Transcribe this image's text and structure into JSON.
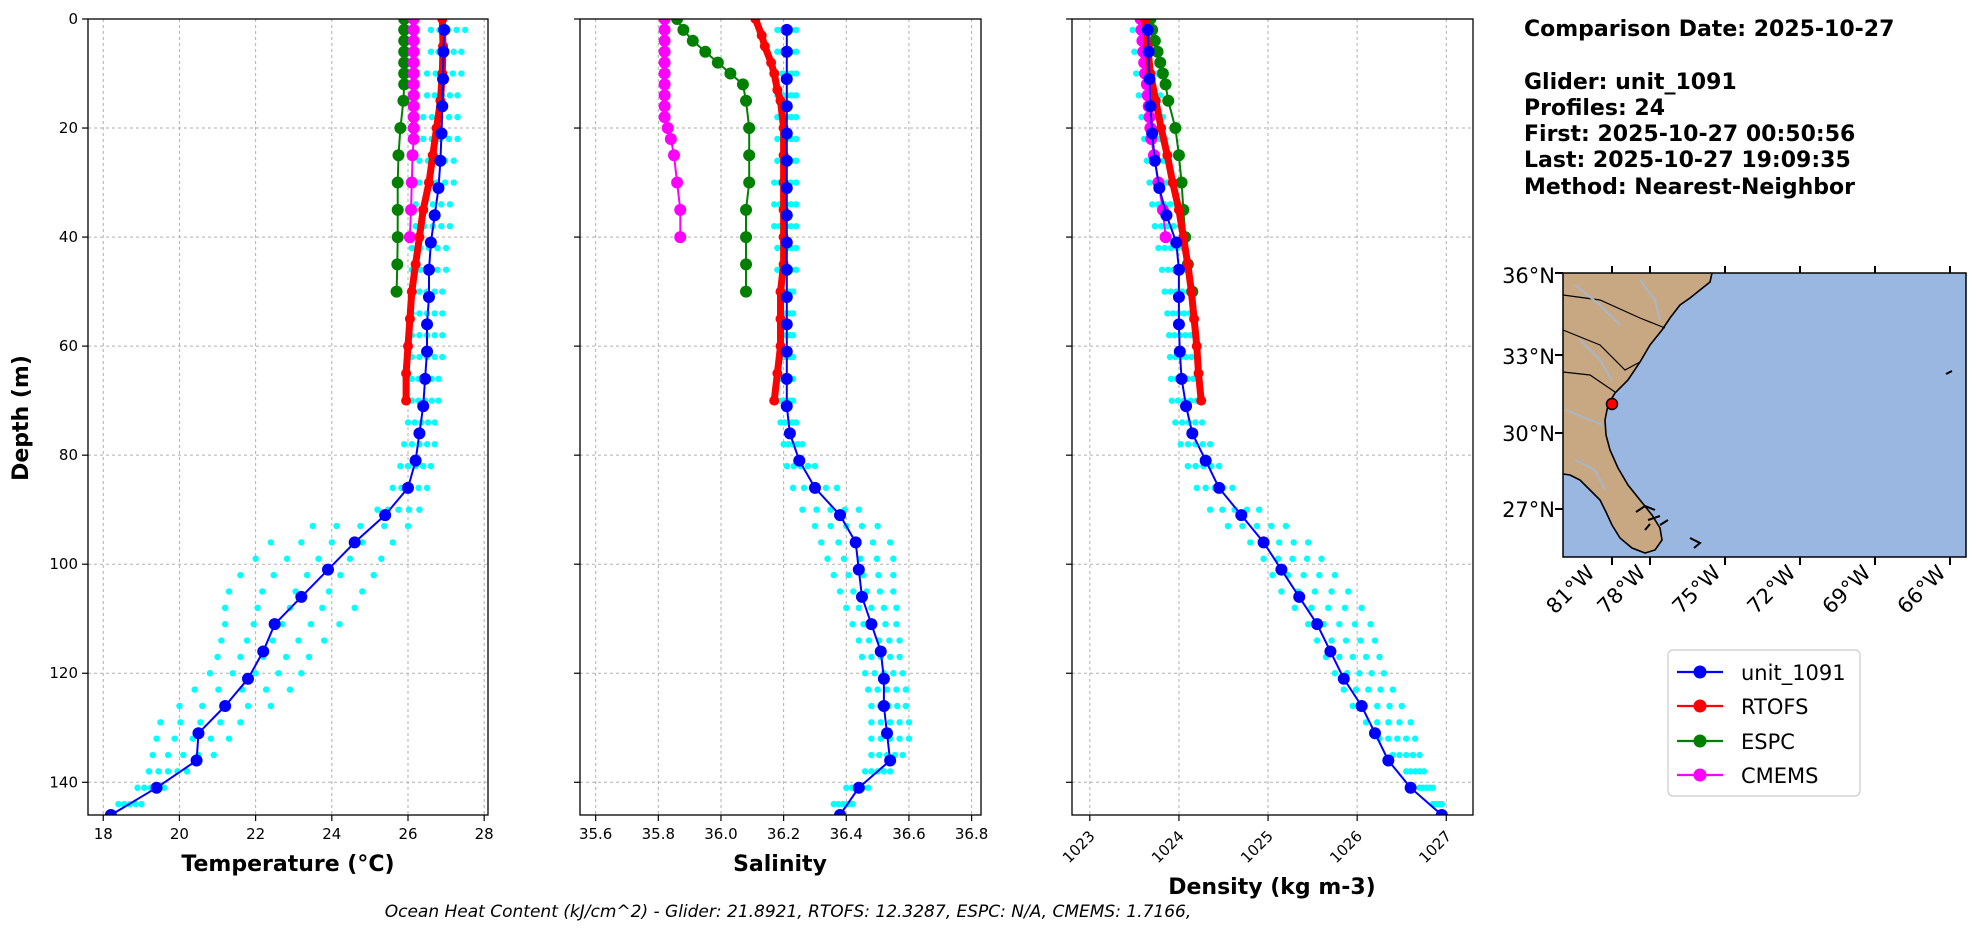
{
  "info": {
    "comparison_date": "Comparison Date: 2025-10-27",
    "glider": "Glider: unit_1091",
    "profiles": "Profiles: 24",
    "first": "First: 2025-10-27 00:50:56",
    "last": "Last: 2025-10-27 19:09:35",
    "method": "Method: Nearest-Neighbor"
  },
  "footer": "Ocean Heat Content (kJ/cm^2) - Glider: 21.8921,  RTOFS: 12.3287,  ESPC: N/A,  CMEMS: 1.7166,",
  "colors": {
    "glider": "#0000ff",
    "glider_raw": "#00ffff",
    "rtofs": "#ff0000",
    "espc": "#008000",
    "cmems": "#ff00ff",
    "ocean": "#9ab7e2",
    "land": "#c8a882"
  },
  "legend": [
    "unit_1091",
    "RTOFS",
    "ESPC",
    "CMEMS"
  ],
  "map": {
    "lat_labels": [
      "36°N",
      "33°N",
      "30°N",
      "27°N"
    ],
    "lon_labels": [
      "81°W",
      "78°W",
      "75°W",
      "72°W",
      "69°W",
      "66°W"
    ],
    "glider_position": {
      "lon": -80.1,
      "lat": 31.1
    }
  },
  "chart_data": [
    {
      "type": "line",
      "title": "",
      "xlabel": "Temperature (°C)",
      "ylabel": "Depth (m)",
      "xlim": [
        17.6,
        28.1
      ],
      "ylim": [
        146,
        0
      ],
      "xticks": [
        18,
        20,
        22,
        24,
        26,
        28
      ],
      "yticks": [
        0,
        20,
        40,
        60,
        80,
        100,
        120,
        140
      ],
      "grid": true,
      "series": [
        {
          "name": "unit_1091",
          "key": "glider",
          "depth": [
            2,
            6,
            11,
            16,
            21,
            26,
            31,
            36,
            41,
            46,
            51,
            56,
            61,
            66,
            71,
            76,
            81,
            86,
            91,
            96,
            101,
            106,
            111,
            116,
            121,
            126,
            131,
            136,
            141,
            146
          ],
          "values": [
            26.95,
            26.93,
            26.92,
            26.9,
            26.88,
            26.85,
            26.8,
            26.7,
            26.6,
            26.55,
            26.55,
            26.5,
            26.5,
            26.45,
            26.4,
            26.3,
            26.2,
            26.0,
            25.4,
            24.6,
            23.9,
            23.2,
            22.5,
            22.2,
            21.8,
            21.2,
            20.5,
            20.45,
            19.4,
            18.2
          ]
        },
        {
          "name": "RTOFS",
          "key": "rtofs",
          "depth": [
            0,
            5,
            10,
            15,
            20,
            25,
            30,
            35,
            40,
            45,
            50,
            55,
            60,
            65,
            70
          ],
          "values": [
            26.9,
            26.92,
            26.9,
            26.85,
            26.75,
            26.65,
            26.55,
            26.4,
            26.3,
            26.2,
            26.1,
            26.05,
            26.0,
            25.95,
            25.95
          ]
        },
        {
          "name": "ESPC",
          "key": "espc",
          "depth": [
            0,
            2,
            4,
            6,
            8,
            10,
            12,
            15,
            20,
            25,
            30,
            35,
            40,
            45,
            50
          ],
          "values": [
            25.9,
            25.9,
            25.9,
            25.9,
            25.9,
            25.9,
            25.9,
            25.88,
            25.8,
            25.75,
            25.73,
            25.73,
            25.73,
            25.72,
            25.7
          ]
        },
        {
          "name": "CMEMS",
          "key": "cmems",
          "depth": [
            0,
            2,
            4,
            6,
            8,
            10,
            12,
            14,
            16,
            18,
            20,
            22,
            25,
            30,
            35,
            40
          ],
          "values": [
            26.15,
            26.15,
            26.15,
            26.15,
            26.15,
            26.15,
            26.15,
            26.15,
            26.15,
            26.15,
            26.15,
            26.15,
            26.12,
            26.1,
            26.08,
            26.05
          ]
        }
      ],
      "raw_profiles": {
        "depth": [
          2,
          6,
          10,
          14,
          18,
          22,
          26,
          30,
          34,
          38,
          42,
          46,
          50,
          54,
          58,
          62,
          66,
          70,
          74,
          78,
          82,
          86,
          90,
          93,
          96,
          99,
          102,
          105,
          108,
          111,
          114,
          117,
          120,
          123,
          126,
          129,
          132,
          135,
          138,
          141,
          144
        ],
        "min": [
          26.6,
          26.6,
          26.5,
          26.5,
          26.4,
          26.4,
          26.3,
          26.3,
          26.2,
          26.2,
          26.1,
          26.1,
          26.1,
          26.1,
          26.1,
          26.1,
          26.1,
          26.1,
          26.0,
          25.9,
          25.8,
          25.6,
          25.2,
          23.5,
          22.4,
          22.0,
          21.6,
          21.3,
          21.2,
          21.2,
          21.1,
          21.0,
          20.8,
          20.4,
          20.0,
          19.5,
          19.4,
          19.3,
          19.2,
          18.9,
          18.4
        ],
        "max": [
          27.5,
          27.4,
          27.4,
          27.3,
          27.3,
          27.3,
          27.2,
          27.2,
          27.1,
          27.1,
          27.0,
          27.0,
          26.9,
          26.9,
          26.9,
          26.9,
          26.8,
          26.8,
          26.7,
          26.7,
          26.6,
          26.5,
          26.3,
          26.0,
          25.6,
          25.3,
          25.1,
          24.8,
          24.6,
          24.2,
          23.8,
          23.4,
          23.2,
          22.9,
          22.4,
          21.6,
          21.3,
          20.9,
          20.2,
          19.6,
          19.0
        ]
      }
    },
    {
      "type": "line",
      "title": "",
      "xlabel": "Salinity",
      "ylabel": "",
      "xlim": [
        35.55,
        36.83
      ],
      "ylim": [
        146,
        0
      ],
      "xticks": [
        35.6,
        35.8,
        36.0,
        36.2,
        36.4,
        36.6,
        36.8
      ],
      "yticks": [
        0,
        20,
        40,
        60,
        80,
        100,
        120,
        140
      ],
      "grid": true,
      "series": [
        {
          "name": "unit_1091",
          "key": "glider",
          "depth": [
            2,
            6,
            11,
            16,
            21,
            26,
            31,
            36,
            41,
            46,
            51,
            56,
            61,
            66,
            71,
            76,
            81,
            86,
            91,
            96,
            101,
            106,
            111,
            116,
            121,
            126,
            131,
            136,
            141,
            146
          ],
          "values": [
            36.21,
            36.21,
            36.21,
            36.21,
            36.21,
            36.21,
            36.21,
            36.21,
            36.21,
            36.21,
            36.21,
            36.21,
            36.21,
            36.21,
            36.21,
            36.22,
            36.25,
            36.3,
            36.38,
            36.43,
            36.44,
            36.45,
            36.48,
            36.51,
            36.52,
            36.52,
            36.53,
            36.54,
            36.44,
            36.38
          ]
        },
        {
          "name": "RTOFS",
          "key": "rtofs",
          "depth": [
            0,
            3,
            5,
            8,
            10,
            13,
            15,
            20,
            25,
            30,
            35,
            40,
            45,
            50,
            55,
            60,
            65,
            70
          ],
          "values": [
            36.11,
            36.13,
            36.14,
            36.16,
            36.17,
            36.18,
            36.19,
            36.2,
            36.2,
            36.2,
            36.2,
            36.2,
            36.2,
            36.19,
            36.19,
            36.19,
            36.18,
            36.17
          ]
        },
        {
          "name": "ESPC",
          "key": "espc",
          "depth": [
            0,
            2,
            4,
            6,
            8,
            10,
            12,
            15,
            20,
            25,
            30,
            35,
            40,
            45,
            50
          ],
          "values": [
            35.86,
            35.88,
            35.91,
            35.95,
            35.99,
            36.03,
            36.07,
            36.08,
            36.09,
            36.09,
            36.09,
            36.08,
            36.08,
            36.08,
            36.08
          ]
        },
        {
          "name": "CMEMS",
          "key": "cmems",
          "depth": [
            0,
            2,
            4,
            6,
            8,
            10,
            12,
            14,
            16,
            18,
            20,
            22,
            25,
            30,
            35,
            40
          ],
          "values": [
            35.82,
            35.82,
            35.82,
            35.82,
            35.82,
            35.82,
            35.82,
            35.82,
            35.82,
            35.82,
            35.83,
            35.84,
            35.85,
            35.86,
            35.87,
            35.87
          ]
        }
      ],
      "raw_profiles": {
        "depth": [
          2,
          6,
          10,
          14,
          18,
          22,
          26,
          30,
          34,
          38,
          42,
          46,
          50,
          54,
          58,
          62,
          66,
          70,
          74,
          78,
          82,
          86,
          90,
          93,
          96,
          99,
          102,
          105,
          108,
          111,
          114,
          117,
          120,
          123,
          126,
          129,
          132,
          135,
          138,
          141,
          144
        ],
        "min": [
          36.18,
          36.18,
          36.18,
          36.18,
          36.18,
          36.18,
          36.18,
          36.17,
          36.17,
          36.17,
          36.18,
          36.18,
          36.19,
          36.19,
          36.19,
          36.19,
          36.19,
          36.19,
          36.19,
          36.2,
          36.21,
          36.23,
          36.26,
          36.3,
          36.32,
          36.34,
          36.36,
          36.38,
          36.4,
          36.42,
          36.44,
          36.45,
          36.46,
          36.47,
          36.48,
          36.48,
          36.48,
          36.48,
          36.46,
          36.4,
          36.36
        ],
        "max": [
          36.24,
          36.24,
          36.24,
          36.24,
          36.24,
          36.24,
          36.24,
          36.24,
          36.24,
          36.24,
          36.24,
          36.24,
          36.23,
          36.23,
          36.23,
          36.23,
          36.23,
          36.23,
          36.24,
          36.26,
          36.3,
          36.37,
          36.44,
          36.5,
          36.54,
          36.55,
          36.55,
          36.55,
          36.56,
          36.56,
          36.57,
          36.57,
          36.58,
          36.59,
          36.59,
          36.6,
          36.6,
          36.58,
          36.54,
          36.47,
          36.42
        ]
      }
    },
    {
      "type": "line",
      "title": "",
      "xlabel": "Density (kg m-3)",
      "ylabel": "",
      "xlim": [
        1022.8,
        1027.3
      ],
      "ylim": [
        146,
        0
      ],
      "xticks": [
        1023,
        1024,
        1025,
        1026,
        1027
      ],
      "yticks": [
        0,
        20,
        40,
        60,
        80,
        100,
        120,
        140
      ],
      "grid": true,
      "series": [
        {
          "name": "unit_1091",
          "key": "glider",
          "depth": [
            2,
            6,
            11,
            16,
            21,
            26,
            31,
            36,
            41,
            46,
            51,
            56,
            61,
            66,
            71,
            76,
            81,
            86,
            91,
            96,
            101,
            106,
            111,
            116,
            121,
            126,
            131,
            136,
            141,
            146
          ],
          "values": [
            1023.65,
            1023.66,
            1023.67,
            1023.68,
            1023.7,
            1023.73,
            1023.78,
            1023.86,
            1023.97,
            1024.0,
            1024.0,
            1024.0,
            1024.01,
            1024.03,
            1024.08,
            1024.15,
            1024.3,
            1024.45,
            1024.7,
            1024.95,
            1025.15,
            1025.35,
            1025.55,
            1025.7,
            1025.85,
            1026.05,
            1026.2,
            1026.35,
            1026.6,
            1026.95
          ]
        },
        {
          "name": "RTOFS",
          "key": "rtofs",
          "depth": [
            0,
            5,
            10,
            15,
            20,
            25,
            30,
            35,
            40,
            45,
            50,
            55,
            60,
            65,
            70
          ],
          "values": [
            1023.62,
            1023.65,
            1023.68,
            1023.74,
            1023.8,
            1023.87,
            1023.93,
            1024.0,
            1024.05,
            1024.1,
            1024.14,
            1024.17,
            1024.2,
            1024.22,
            1024.25
          ]
        },
        {
          "name": "ESPC",
          "key": "espc",
          "depth": [
            0,
            2,
            4,
            6,
            8,
            10,
            12,
            15,
            20,
            25,
            30,
            35,
            40,
            45,
            50
          ],
          "values": [
            1023.68,
            1023.7,
            1023.73,
            1023.76,
            1023.79,
            1023.82,
            1023.85,
            1023.88,
            1023.96,
            1024.0,
            1024.03,
            1024.05,
            1024.07,
            1024.1,
            1024.15
          ]
        },
        {
          "name": "CMEMS",
          "key": "cmems",
          "depth": [
            0,
            2,
            4,
            6,
            8,
            10,
            12,
            14,
            16,
            18,
            20,
            22,
            25,
            30,
            35,
            40
          ],
          "values": [
            1023.57,
            1023.58,
            1023.59,
            1023.6,
            1023.61,
            1023.62,
            1023.64,
            1023.65,
            1023.66,
            1023.67,
            1023.68,
            1023.69,
            1023.72,
            1023.77,
            1023.82,
            1023.85
          ]
        }
      ],
      "raw_profiles": {
        "depth": [
          2,
          6,
          10,
          14,
          18,
          22,
          26,
          30,
          34,
          38,
          42,
          46,
          50,
          54,
          58,
          62,
          66,
          70,
          74,
          78,
          82,
          86,
          90,
          93,
          96,
          99,
          102,
          105,
          108,
          111,
          114,
          117,
          120,
          123,
          126,
          129,
          132,
          135,
          138,
          141,
          144
        ],
        "min": [
          1023.48,
          1023.5,
          1023.52,
          1023.55,
          1023.58,
          1023.61,
          1023.64,
          1023.67,
          1023.7,
          1023.73,
          1023.77,
          1023.81,
          1023.84,
          1023.87,
          1023.89,
          1023.9,
          1023.91,
          1023.92,
          1023.96,
          1024.02,
          1024.1,
          1024.2,
          1024.35,
          1024.55,
          1024.8,
          1024.95,
          1025.05,
          1025.15,
          1025.3,
          1025.45,
          1025.55,
          1025.65,
          1025.75,
          1025.85,
          1025.95,
          1026.1,
          1026.25,
          1026.4,
          1026.55,
          1026.7,
          1026.85
        ],
        "max": [
          1023.72,
          1023.74,
          1023.76,
          1023.79,
          1023.82,
          1023.85,
          1023.89,
          1023.93,
          1023.97,
          1024.01,
          1024.05,
          1024.08,
          1024.1,
          1024.12,
          1024.13,
          1024.14,
          1024.16,
          1024.2,
          1024.26,
          1024.35,
          1024.45,
          1024.6,
          1024.9,
          1025.2,
          1025.45,
          1025.6,
          1025.75,
          1025.9,
          1026.05,
          1026.15,
          1026.2,
          1026.25,
          1026.3,
          1026.4,
          1026.5,
          1026.6,
          1026.65,
          1026.7,
          1026.75,
          1026.85,
          1026.95
        ]
      }
    }
  ]
}
